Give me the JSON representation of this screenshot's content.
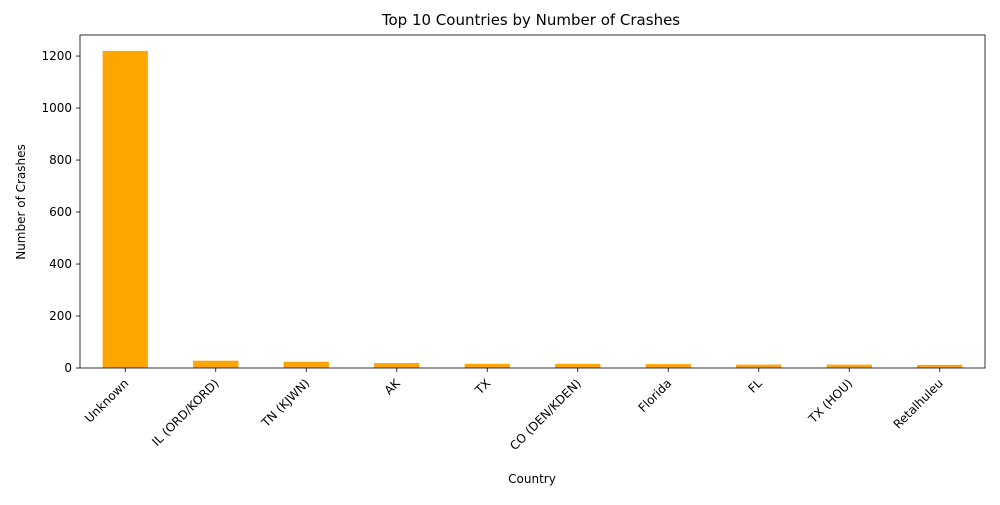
{
  "chart_data": {
    "type": "bar",
    "title": "Top 10 Countries by Number of Crashes",
    "xlabel": "Country",
    "ylabel": "Number of Crashes",
    "categories": [
      "Unknown",
      "IL (ORD/KORD)",
      "TN (KJWN)",
      "AK",
      "TX",
      "CO (DEN/KDEN)",
      "Florida",
      "FL",
      "TX (HOU)",
      "Retalhuleu"
    ],
    "values": [
      1220,
      28,
      24,
      19,
      16,
      16,
      15,
      13,
      13,
      12
    ],
    "ylim": [
      0,
      1281
    ],
    "yticks": [
      0,
      200,
      400,
      600,
      800,
      1000,
      1200
    ],
    "bar_color": "#ffa500",
    "grid": false,
    "legend": "none"
  }
}
